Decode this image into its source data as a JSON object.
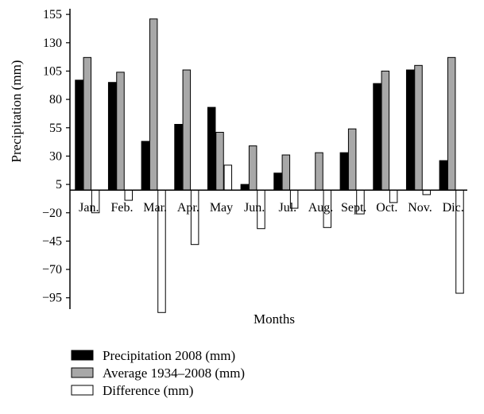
{
  "chart_data": {
    "type": "bar",
    "title": "",
    "xlabel": "Months",
    "ylabel": "Precipitation (mm)",
    "ylim": [
      -105,
      160
    ],
    "yticks": [
      -95,
      -70,
      -45,
      -20,
      5,
      30,
      55,
      80,
      105,
      130,
      155
    ],
    "categories": [
      "Jan.",
      "Feb.",
      "Mar.",
      "Apr.",
      "May",
      "Jun.",
      "Jul.",
      "Aug.",
      "Sept.",
      "Oct.",
      "Nov.",
      "Dic."
    ],
    "series": [
      {
        "name": "Precipitation 2008 (mm)",
        "color": "#000000",
        "values": [
          97,
          95,
          43,
          58,
          73,
          5,
          15,
          0,
          33,
          94,
          106,
          26
        ]
      },
      {
        "name": "Average 1934–2008 (mm)",
        "color": "#a8a8a8",
        "values": [
          117,
          104,
          151,
          106,
          51,
          39,
          31,
          33,
          54,
          105,
          110,
          117
        ]
      },
      {
        "name": "Difference (mm)",
        "color": "#ffffff",
        "values": [
          -20,
          -9,
          -108,
          -48,
          22,
          -34,
          -16,
          -33,
          -21,
          -11,
          -4,
          -91
        ]
      }
    ],
    "legend_position": "bottom-left",
    "grid": false
  }
}
